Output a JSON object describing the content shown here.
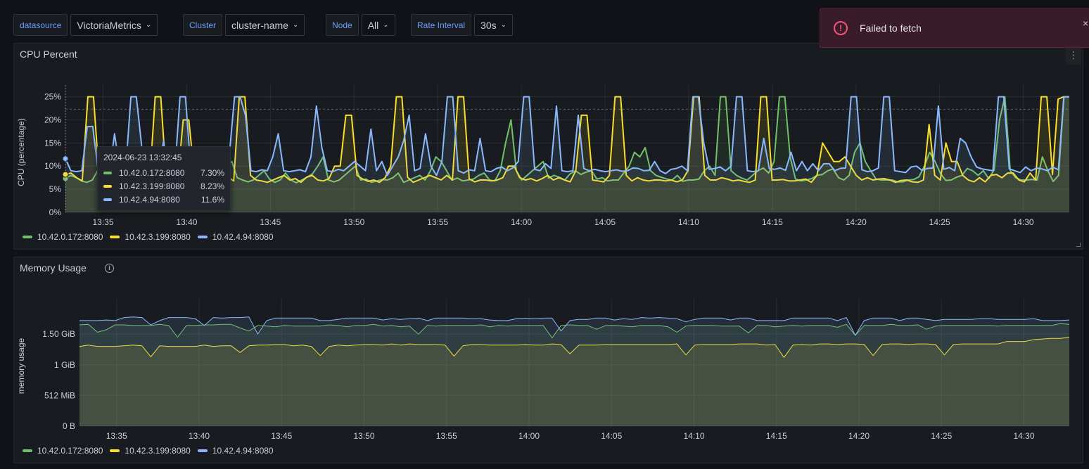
{
  "variables": [
    {
      "label": "datasource",
      "value": "VictoriaMetrics"
    },
    {
      "label": "Cluster",
      "value": "cluster-name"
    },
    {
      "label": "Node",
      "value": "All"
    },
    {
      "label": "Rate Interval",
      "value": "30s"
    }
  ],
  "toast": {
    "message": "Failed to fetch",
    "icon": "alert-circle-icon",
    "close": "×"
  },
  "colors": {
    "green": "#73bf69",
    "yellow": "#fade2a",
    "blue": "#8ab8ff",
    "background": "#111217",
    "panel": "#181b1f"
  },
  "cpu_panel": {
    "title": "CPU Percent",
    "menu": "⋮",
    "legend": [
      "10.42.0.172:8080",
      "10.42.3.199:8080",
      "10.42.4.94:8080"
    ],
    "tooltip": {
      "time": "2024-06-23 13:32:45",
      "rows": [
        {
          "name": "10.42.0.172:8080",
          "value": "7.30%"
        },
        {
          "name": "10.42.3.199:8080",
          "value": "8.23%"
        },
        {
          "name": "10.42.4.94:8080",
          "value": "11.6%"
        }
      ]
    }
  },
  "memory_panel": {
    "title": "Memory Usage",
    "info": "i",
    "legend": [
      "10.42.0.172:8080",
      "10.42.3.199:8080",
      "10.42.4.94:8080"
    ]
  },
  "chart_data": [
    {
      "type": "line",
      "title": "CPU Percent",
      "xlabel": "",
      "ylabel": "CPU (percentage)",
      "ylim": [
        0,
        26
      ],
      "threshold": 22.3,
      "yticks": [
        "0%",
        "5%",
        "10%",
        "15%",
        "20%",
        "25%"
      ],
      "ytick_values": [
        0,
        5,
        10,
        15,
        20,
        25
      ],
      "xticks": [
        "13:35",
        "13:40",
        "13:45",
        "13:50",
        "13:55",
        "14:00",
        "14:05",
        "14:10",
        "14:15",
        "14:20",
        "14:25",
        "14:30"
      ],
      "xtick_minutes": [
        2.25,
        7.25,
        12.25,
        17.25,
        22.25,
        27.25,
        32.25,
        37.25,
        42.25,
        47.25,
        52.25,
        57.25
      ],
      "x_start": "13:32:45",
      "xlim_minutes": [
        0,
        60
      ],
      "series": [
        {
          "name": "10.42.0.172:8080",
          "color": "#73bf69",
          "values": [
            7.3,
            8,
            7.5,
            6.8,
            6.5,
            7,
            9,
            14,
            8,
            7,
            6.5,
            7,
            8,
            6.8,
            7,
            7.2,
            6.9,
            7,
            7.3,
            12,
            6.8,
            9,
            7.5,
            6.6,
            7,
            6.5,
            8,
            7,
            6.8,
            7.2,
            10,
            11,
            7.5,
            7,
            6.6,
            7,
            8,
            9,
            7.2,
            6.5,
            7,
            8.5,
            7,
            6.4,
            7,
            7.6,
            8.3,
            10,
            12,
            7,
            6.6,
            7,
            8,
            9,
            10,
            7,
            7.2,
            6.5,
            6.8,
            7.1,
            7,
            7.5,
            8.5,
            6.5,
            7,
            7.5,
            8,
            7,
            9,
            12,
            11,
            9,
            7,
            7.4,
            6.8,
            7,
            7.2,
            8,
            8.5,
            7,
            6.8,
            9,
            15,
            20,
            9,
            7,
            8,
            9,
            10,
            11,
            7.4,
            8,
            7.6,
            7,
            8.3,
            9,
            8.2,
            8.7,
            9,
            7.2,
            7.5,
            6.8,
            7,
            7,
            8.5,
            10,
            13,
            12,
            14,
            9,
            8,
            7.6,
            7.2,
            7,
            8,
            6.7,
            7,
            7,
            7.2,
            9,
            10,
            8,
            25,
            25,
            9,
            8,
            7.4,
            7,
            8,
            9,
            9.6,
            8.5,
            11,
            25,
            25,
            12,
            7.2,
            6.8,
            7,
            7.3,
            8,
            8.2,
            9,
            9.4,
            7.5,
            7,
            8,
            13,
            15,
            11,
            9,
            7.2,
            7,
            7,
            7,
            6.6,
            6.6,
            7,
            7.1,
            7.7,
            10,
            13,
            11,
            8.4,
            6.9,
            7,
            7.6,
            8,
            9.5,
            9,
            8,
            9,
            7.3,
            9.2,
            20,
            25,
            9,
            7.5,
            7,
            7,
            7.1,
            7,
            12,
            9,
            6.7,
            8,
            25,
            25
          ]
        },
        {
          "name": "10.42.3.199:8080",
          "color": "#fade2a",
          "values": [
            8.2,
            8.5,
            7.5,
            6.8,
            25,
            25,
            8,
            7,
            6.7,
            7,
            6.5,
            8,
            7.2,
            6.9,
            7.5,
            6.6,
            25,
            25,
            7,
            6.8,
            6.6,
            20,
            20,
            8,
            7,
            6.5,
            7,
            8,
            7.3,
            7.6,
            6.8,
            25,
            25,
            8,
            7,
            6.8,
            6.5,
            7,
            7.5,
            8,
            7,
            7.3,
            6.5,
            7.6,
            8,
            7,
            6.8,
            7.3,
            10,
            10,
            21,
            21,
            8,
            7.2,
            6.7,
            7,
            6.5,
            7.5,
            10,
            25,
            25,
            7.6,
            6.5,
            7,
            7.5,
            8,
            7.5,
            7,
            8,
            7,
            25,
            25,
            7.2,
            6.6,
            7,
            7,
            6.8,
            7,
            7.5,
            10,
            10,
            7.5,
            7,
            7.3,
            6.8,
            7.3,
            8,
            7,
            7.5,
            7,
            6.6,
            9,
            21,
            21,
            7,
            6.8,
            6.6,
            8,
            25,
            25,
            8,
            6.8,
            7.5,
            7,
            6.8,
            7,
            7,
            6.8,
            7,
            6.6,
            7,
            9,
            25,
            25,
            8,
            7,
            7,
            7.5,
            7.2,
            6.8,
            7,
            6.7,
            6.5,
            7,
            25,
            25,
            7,
            7,
            7.1,
            6.8,
            6.8,
            7,
            7.2,
            6.5,
            8,
            15,
            13,
            11,
            11,
            12,
            10,
            8,
            7,
            7.5,
            7,
            7.2,
            7.3,
            7,
            6.5,
            6.9,
            7,
            6.6,
            6.5,
            7,
            19,
            8,
            7,
            15,
            11,
            11,
            8,
            7,
            6.6,
            7.5,
            6.6,
            8,
            8.2,
            7.5,
            8.5,
            8.5,
            7,
            6.6,
            8.5,
            7,
            25,
            25,
            8.2,
            24.5,
            25,
            25
          ]
        },
        {
          "name": "10.42.4.94:8080",
          "color": "#8ab8ff",
          "values": [
            11.6,
            9,
            8.8,
            9,
            18.5,
            18.6,
            9,
            7.7,
            8,
            17,
            9,
            8.5,
            25,
            25,
            14,
            14,
            8.5,
            9,
            15.5,
            8,
            8.2,
            25,
            25,
            9,
            10.5,
            9,
            11,
            8.5,
            9.5,
            11,
            12,
            25,
            25,
            21,
            9,
            8.8,
            9.2,
            9,
            12,
            17,
            9,
            8.8,
            9,
            9.2,
            8.8,
            12,
            23,
            14,
            9,
            8.8,
            9.3,
            9,
            10,
            11,
            10,
            9,
            18,
            9,
            11,
            8,
            10,
            12,
            15.5,
            21,
            9,
            9.5,
            17,
            10,
            8,
            11,
            25,
            25,
            9,
            8.5,
            9.2,
            9,
            16,
            9,
            8.8,
            9.5,
            9.8,
            9,
            9.6,
            11,
            25,
            25,
            9.3,
            9,
            10.5,
            9.5,
            23,
            9,
            8.8,
            9,
            21,
            9.5,
            9,
            9.3,
            9,
            8.8,
            9,
            9.2,
            8.9,
            9,
            9.6,
            9.5,
            9,
            9.1,
            11,
            9,
            8.4,
            9.3,
            9.5,
            10,
            9,
            25,
            25,
            15,
            9.3,
            9.5,
            9.8,
            9,
            10,
            25,
            25,
            9,
            8.8,
            9,
            16,
            9.5,
            9.3,
            9.6,
            9.1,
            13,
            9,
            11,
            9,
            10.5,
            9,
            10.5,
            10.5,
            9,
            9.5,
            9.6,
            25,
            25,
            9.2,
            8.8,
            9,
            9.6,
            25,
            25,
            9,
            8.8,
            8.6,
            9.8,
            10,
            9.1,
            9.5,
            9.6,
            23,
            9.3,
            9.7,
            9,
            16,
            15,
            12,
            9.8,
            9.4,
            9.2,
            9,
            25,
            25,
            9.4,
            9,
            8.6,
            9.8,
            9,
            9.6,
            9.4,
            9,
            9.8,
            9.2,
            25,
            25
          ]
        }
      ]
    },
    {
      "type": "area",
      "title": "Memory Usage",
      "xlabel": "",
      "ylabel": "memory usage",
      "ylim": [
        0,
        1.96
      ],
      "yticks": [
        "0 B",
        "512 MiB",
        "1 GiB",
        "1.50 GiB"
      ],
      "ytick_values": [
        0,
        0.5,
        1,
        1.5
      ],
      "xticks": [
        "13:35",
        "13:40",
        "13:45",
        "13:50",
        "13:55",
        "14:00",
        "14:05",
        "14:10",
        "14:15",
        "14:20",
        "14:25",
        "14:30"
      ],
      "xtick_minutes": [
        2.25,
        7.25,
        12.25,
        17.25,
        22.25,
        27.25,
        32.25,
        37.25,
        42.25,
        47.25,
        52.25,
        57.25
      ],
      "x_start": "13:32:45",
      "xlim_minutes": [
        0,
        60
      ],
      "series": [
        {
          "name": "10.42.0.172:8080",
          "color": "#73bf69",
          "values": [
            1.65,
            1.66,
            1.53,
            1.57,
            1.65,
            1.65,
            1.64,
            1.64,
            1.64,
            1.66,
            1.64,
            1.45,
            1.64,
            1.64,
            1.65,
            1.65,
            1.66,
            1.66,
            1.6,
            1.55,
            1.64,
            1.63,
            1.62,
            1.64,
            1.63,
            1.63,
            1.63,
            1.63,
            1.65,
            1.64,
            1.62,
            1.64,
            1.64,
            1.66,
            1.63,
            1.64,
            1.62,
            1.63,
            1.5,
            1.64,
            1.63,
            1.64,
            1.64,
            1.64,
            1.64,
            1.65,
            1.62,
            1.64,
            1.63,
            1.64,
            1.64,
            1.64,
            1.64,
            1.44,
            1.64,
            1.65,
            1.64,
            1.64,
            1.58,
            1.64,
            1.64,
            1.63,
            1.62,
            1.64,
            1.64,
            1.64,
            1.62,
            1.53,
            1.63,
            1.64,
            1.64,
            1.64,
            1.63,
            1.63,
            1.63,
            1.52,
            1.64,
            1.64,
            1.62,
            1.63,
            1.64,
            1.63,
            1.64,
            1.64,
            1.64,
            1.61,
            1.66,
            1.48,
            1.64,
            1.64,
            1.64,
            1.66,
            1.64,
            1.64,
            1.65,
            1.58,
            1.63,
            1.64,
            1.64,
            1.64,
            1.64,
            1.64,
            1.64,
            1.63,
            1.64,
            1.64,
            1.64,
            1.64,
            1.64,
            1.64,
            1.67,
            1.66
          ]
        },
        {
          "name": "10.42.3.199:8080",
          "color": "#fade2a",
          "values": [
            1.3,
            1.32,
            1.3,
            1.3,
            1.3,
            1.31,
            1.32,
            1.31,
            1.13,
            1.31,
            1.3,
            1.3,
            1.3,
            1.3,
            1.32,
            1.3,
            1.31,
            1.31,
            1.2,
            1.31,
            1.32,
            1.32,
            1.33,
            1.33,
            1.31,
            1.32,
            1.3,
            1.15,
            1.3,
            1.32,
            1.31,
            1.32,
            1.33,
            1.33,
            1.32,
            1.34,
            1.32,
            1.34,
            1.33,
            1.33,
            1.33,
            1.32,
            1.14,
            1.31,
            1.33,
            1.33,
            1.32,
            1.32,
            1.32,
            1.32,
            1.33,
            1.32,
            1.32,
            1.34,
            1.33,
            1.18,
            1.32,
            1.32,
            1.32,
            1.33,
            1.33,
            1.33,
            1.33,
            1.33,
            1.33,
            1.33,
            1.33,
            1.34,
            1.16,
            1.32,
            1.33,
            1.33,
            1.33,
            1.33,
            1.34,
            1.34,
            1.34,
            1.32,
            1.33,
            1.12,
            1.32,
            1.33,
            1.32,
            1.34,
            1.34,
            1.33,
            1.34,
            1.34,
            1.33,
            1.15,
            1.33,
            1.34,
            1.34,
            1.33,
            1.34,
            1.34,
            1.33,
            1.16,
            1.33,
            1.34,
            1.34,
            1.34,
            1.34,
            1.34,
            1.38,
            1.38,
            1.38,
            1.41,
            1.42,
            1.43,
            1.43,
            1.45
          ]
        },
        {
          "name": "10.42.4.94:8080",
          "color": "#8ab8ff",
          "values": [
            1.72,
            1.72,
            1.72,
            1.73,
            1.72,
            1.77,
            1.78,
            1.77,
            1.65,
            1.72,
            1.77,
            1.77,
            1.77,
            1.75,
            1.64,
            1.77,
            1.76,
            1.77,
            1.77,
            1.78,
            1.5,
            1.72,
            1.76,
            1.76,
            1.76,
            1.76,
            1.76,
            1.72,
            1.72,
            1.74,
            1.76,
            1.76,
            1.76,
            1.76,
            1.73,
            1.75,
            1.74,
            1.75,
            1.76,
            1.72,
            1.76,
            1.76,
            1.76,
            1.76,
            1.75,
            1.75,
            1.73,
            1.72,
            1.72,
            1.75,
            1.76,
            1.75,
            1.76,
            1.76,
            1.55,
            1.72,
            1.74,
            1.74,
            1.76,
            1.76,
            1.73,
            1.75,
            1.74,
            1.77,
            1.76,
            1.77,
            1.76,
            1.75,
            1.7,
            1.74,
            1.76,
            1.76,
            1.76,
            1.73,
            1.76,
            1.76,
            1.72,
            1.72,
            1.72,
            1.72,
            1.76,
            1.76,
            1.76,
            1.76,
            1.76,
            1.72,
            1.77,
            1.48,
            1.72,
            1.76,
            1.76,
            1.76,
            1.72,
            1.76,
            1.76,
            1.74,
            1.72,
            1.74,
            1.74,
            1.74,
            1.74,
            1.75,
            1.75,
            1.74,
            1.74,
            1.74,
            1.74,
            1.75,
            1.72,
            1.72,
            1.72,
            1.73
          ]
        }
      ]
    }
  ]
}
